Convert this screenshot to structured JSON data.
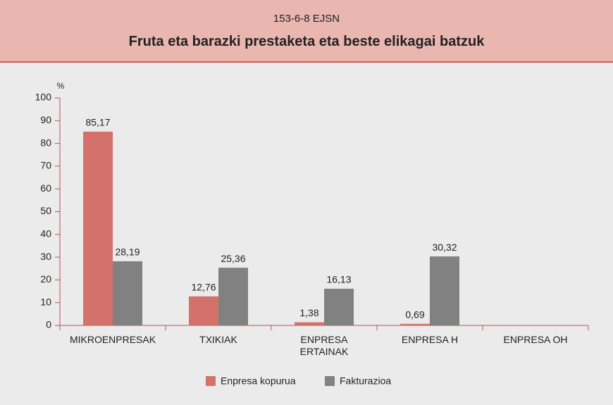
{
  "chart_data": {
    "type": "bar",
    "subtitle": "153-6-8 EJSN",
    "title": "Fruta eta barazki prestaketa eta beste elikagai batzuk",
    "y_label": "%",
    "categories": [
      "MIKROENPRESAK",
      "TXIKIAK",
      "ENPRESA ERTAINAK",
      "ENPRESA H",
      "ENPRESA OH"
    ],
    "series": [
      {
        "name": "Enpresa kopurua",
        "color": "#d4716b",
        "values": [
          85.17,
          12.76,
          1.38,
          0.69,
          null
        ],
        "value_labels": [
          "85,17",
          "12,76",
          "1,38",
          "0,69",
          null
        ]
      },
      {
        "name": "Fakturazioa",
        "color": "#818181",
        "values": [
          28.19,
          25.36,
          16.13,
          30.32,
          null
        ],
        "value_labels": [
          "28,19",
          "25,36",
          "16,13",
          "30,32",
          null
        ]
      }
    ],
    "ylim": [
      0,
      100
    ],
    "yticks": [
      0,
      10,
      20,
      30,
      40,
      50,
      60,
      70,
      80,
      90,
      100
    ]
  }
}
